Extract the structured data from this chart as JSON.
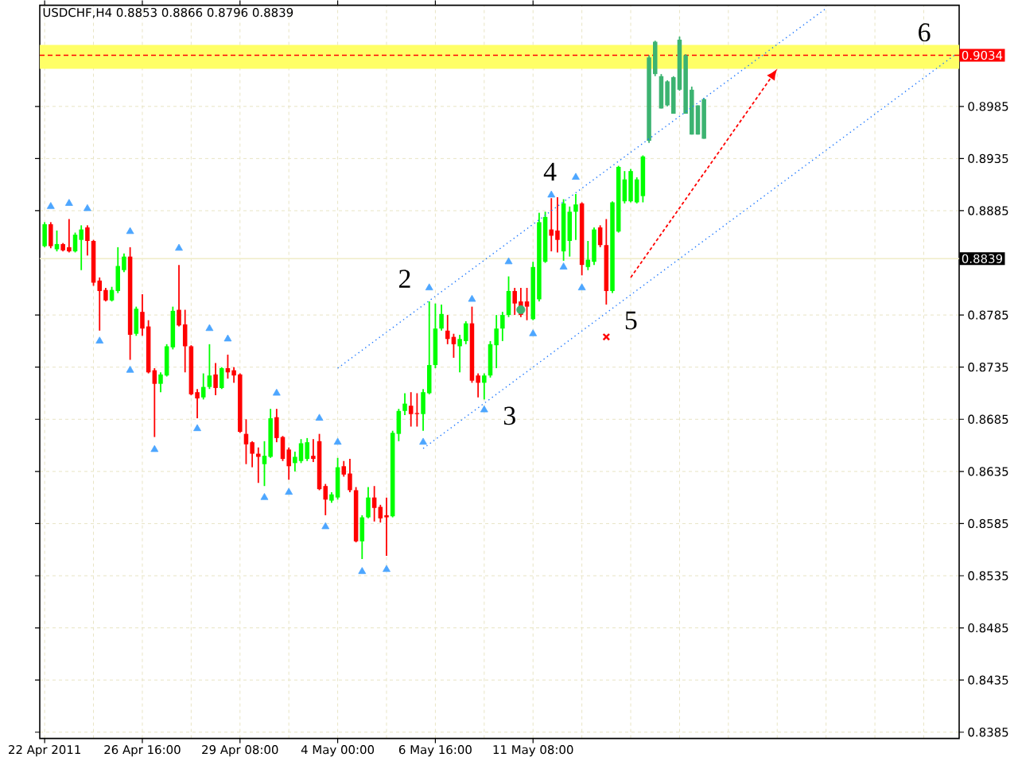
{
  "chart_data": {
    "type": "candlestick",
    "title": "USDCHF,H4  0.8853 0.8866 0.8796 0.8839",
    "categories": [
      "22 Apr 2011",
      null,
      null,
      null,
      null,
      null,
      null,
      null,
      null,
      null,
      null,
      null,
      null,
      null,
      null,
      null,
      "26 Apr 16:00",
      null,
      null,
      null,
      null,
      null,
      null,
      null,
      null,
      null,
      null,
      null,
      null,
      null,
      null,
      null,
      "29 Apr 08:00",
      null,
      null,
      null,
      null,
      null,
      null,
      null,
      null,
      null,
      null,
      null,
      null,
      null,
      null,
      null,
      "4 May 00:00",
      null,
      null,
      null,
      null,
      null,
      null,
      null,
      null,
      null,
      null,
      null,
      null,
      null,
      null,
      null,
      "6 May 16:00",
      null,
      null,
      null,
      null,
      null,
      null,
      null,
      null,
      null,
      null,
      null,
      null,
      null,
      null,
      null,
      "11 May 08:00",
      null,
      null,
      null,
      null,
      null,
      null,
      null,
      null,
      null,
      null,
      null,
      null,
      null,
      null,
      null,
      null,
      null,
      null,
      null,
      null,
      null,
      null,
      null,
      null,
      null,
      null,
      null,
      null,
      null,
      null,
      null,
      null,
      null,
      null,
      null,
      null,
      null,
      null,
      null,
      null,
      null,
      null,
      null,
      null,
      null,
      null,
      null,
      null,
      null,
      null,
      null,
      null,
      null,
      null,
      null,
      null,
      null,
      null,
      null,
      null,
      null,
      null,
      null,
      null,
      null,
      null,
      null,
      null,
      null
    ],
    "ohlc": [
      [
        0.8851,
        0.8874,
        0.885,
        0.8872
      ],
      [
        0.8872,
        0.8874,
        0.8849,
        0.8851
      ],
      [
        0.8848,
        0.8866,
        0.8846,
        0.8853
      ],
      [
        0.8853,
        0.8854,
        0.8846,
        0.8847
      ],
      [
        0.885,
        0.8877,
        0.8845,
        0.8846
      ],
      [
        0.8846,
        0.8864,
        0.8845,
        0.8862
      ],
      [
        0.8857,
        0.8871,
        0.8828,
        0.8867
      ],
      [
        0.8869,
        0.8871,
        0.8842,
        0.8856
      ],
      [
        0.8856,
        0.8857,
        0.8813,
        0.8816
      ],
      [
        0.8818,
        0.8821,
        0.877,
        0.8808
      ],
      [
        0.8809,
        0.8811,
        0.8798,
        0.8799
      ],
      [
        0.8799,
        0.8812,
        0.8798,
        0.8809
      ],
      [
        0.8808,
        0.885,
        0.8806,
        0.8832
      ],
      [
        0.8828,
        0.8844,
        0.8826,
        0.8841
      ],
      [
        0.8841,
        0.885,
        0.8742,
        0.8766
      ],
      [
        0.8767,
        0.8793,
        0.8765,
        0.8791
      ],
      [
        0.8788,
        0.8805,
        0.8765,
        0.8772
      ],
      [
        0.8774,
        0.878,
        0.8729,
        0.873
      ],
      [
        0.8732,
        0.8734,
        0.8668,
        0.8719
      ],
      [
        0.8719,
        0.873,
        0.8711,
        0.8728
      ],
      [
        0.8727,
        0.8757,
        0.8726,
        0.8755
      ],
      [
        0.8754,
        0.8793,
        0.8752,
        0.8789
      ],
      [
        0.879,
        0.8833,
        0.8774,
        0.8775
      ],
      [
        0.8776,
        0.879,
        0.873,
        0.8755
      ],
      [
        0.8755,
        0.8756,
        0.8708,
        0.8709
      ],
      [
        0.8711,
        0.8714,
        0.8686,
        0.8705
      ],
      [
        0.8706,
        0.8729,
        0.8704,
        0.8716
      ],
      [
        0.8716,
        0.8757,
        0.8714,
        0.8727
      ],
      [
        0.8728,
        0.8739,
        0.8708,
        0.8715
      ],
      [
        0.8715,
        0.8735,
        0.8714,
        0.8734
      ],
      [
        0.8734,
        0.8747,
        0.8724,
        0.873
      ],
      [
        0.8732,
        0.8735,
        0.872,
        0.8727
      ],
      [
        0.8728,
        0.8729,
        0.8672,
        0.8673
      ],
      [
        0.8671,
        0.8685,
        0.8642,
        0.8661
      ],
      [
        0.8663,
        0.8664,
        0.8639,
        0.8652
      ],
      [
        0.8652,
        0.8658,
        0.8624,
        0.8649
      ],
      [
        0.8642,
        0.8664,
        0.8621,
        0.865
      ],
      [
        0.8649,
        0.8695,
        0.8648,
        0.8686
      ],
      [
        0.8687,
        0.8695,
        0.8663,
        0.8667
      ],
      [
        0.8668,
        0.8669,
        0.8645,
        0.8647
      ],
      [
        0.8656,
        0.8658,
        0.8627,
        0.864
      ],
      [
        0.8643,
        0.8654,
        0.8635,
        0.8649
      ],
      [
        0.8645,
        0.8666,
        0.8643,
        0.8662
      ],
      [
        0.8647,
        0.8667,
        0.8645,
        0.8663
      ],
      [
        0.865,
        0.8666,
        0.8644,
        0.8647
      ],
      [
        0.8664,
        0.8671,
        0.8617,
        0.8618
      ],
      [
        0.8621,
        0.8623,
        0.8593,
        0.8608
      ],
      [
        0.8607,
        0.8615,
        0.8605,
        0.8613
      ],
      [
        0.861,
        0.8648,
        0.8608,
        0.8639
      ],
      [
        0.864,
        0.8645,
        0.863,
        0.8632
      ],
      [
        0.8633,
        0.8647,
        0.8615,
        0.8617
      ],
      [
        0.8617,
        0.862,
        0.8567,
        0.8568
      ],
      [
        0.8568,
        0.8593,
        0.8551,
        0.8591
      ],
      [
        0.8591,
        0.862,
        0.859,
        0.861
      ],
      [
        0.861,
        0.8621,
        0.8587,
        0.86
      ],
      [
        0.8601,
        0.8603,
        0.8586,
        0.859
      ],
      [
        0.8593,
        0.861,
        0.8554,
        0.8591
      ],
      [
        0.8592,
        0.8674,
        0.8591,
        0.8672
      ],
      [
        0.8671,
        0.8695,
        0.8664,
        0.8693
      ],
      [
        0.8693,
        0.871,
        0.8689,
        0.87
      ],
      [
        0.8698,
        0.8711,
        0.8678,
        0.869
      ],
      [
        0.8691,
        0.871,
        0.8678,
        0.869
      ],
      [
        0.869,
        0.8714,
        0.8674,
        0.8711
      ],
      [
        0.871,
        0.8798,
        0.8709,
        0.8737
      ],
      [
        0.8737,
        0.8796,
        0.8734,
        0.8772
      ],
      [
        0.8772,
        0.8795,
        0.877,
        0.8786
      ],
      [
        0.877,
        0.8785,
        0.8757,
        0.8762
      ],
      [
        0.8764,
        0.8767,
        0.8744,
        0.8757
      ],
      [
        0.8755,
        0.8766,
        0.873,
        0.8762
      ],
      [
        0.876,
        0.8779,
        0.8757,
        0.8777
      ],
      [
        0.8777,
        0.8793,
        0.872,
        0.8722
      ],
      [
        0.8727,
        0.8729,
        0.8706,
        0.872
      ],
      [
        0.872,
        0.8729,
        0.8704,
        0.8727
      ],
      [
        0.8727,
        0.876,
        0.8725,
        0.8757
      ],
      [
        0.8756,
        0.8785,
        0.8734,
        0.8772
      ],
      [
        0.8772,
        0.8788,
        0.876,
        0.8785
      ],
      [
        0.8785,
        0.8822,
        0.8783,
        0.8808
      ],
      [
        0.8808,
        0.8811,
        0.8785,
        0.8796
      ],
      [
        0.8798,
        0.8811,
        0.8783,
        0.8785
      ],
      [
        0.8798,
        0.8811,
        0.878,
        0.8793
      ],
      [
        0.8781,
        0.8836,
        0.878,
        0.8831
      ],
      [
        0.88,
        0.8883,
        0.8798,
        0.8874
      ],
      [
        0.8836,
        0.8884,
        0.8835,
        0.8879
      ],
      [
        0.8867,
        0.8897,
        0.8846,
        0.8861
      ],
      [
        0.8866,
        0.8898,
        0.8845,
        0.8857
      ],
      [
        0.8846,
        0.8896,
        0.8837,
        0.8892
      ],
      [
        0.8856,
        0.8889,
        0.8841,
        0.8884
      ],
      [
        0.8884,
        0.8901,
        0.8857,
        0.8891
      ],
      [
        0.8892,
        0.8893,
        0.8823,
        0.8833
      ],
      [
        0.8831,
        0.8856,
        0.8828,
        0.8838
      ],
      [
        0.8836,
        0.8869,
        0.8833,
        0.8867
      ],
      [
        0.8869,
        0.8871,
        0.885,
        0.8852
      ],
      [
        0.8852,
        0.8877,
        0.8795,
        0.8808
      ],
      [
        0.8808,
        0.8894,
        0.8806,
        0.8893
      ],
      [
        0.8865,
        0.8928,
        0.8864,
        0.8927
      ],
      [
        0.8894,
        0.8923,
        0.8892,
        0.8915
      ],
      [
        0.8894,
        0.8925,
        0.8893,
        0.8923
      ],
      [
        0.8893,
        0.8917,
        0.8892,
        0.8915
      ],
      [
        0.8899,
        0.8938,
        0.8893,
        0.8937
      ],
      [
        0.8952,
        0.9034,
        0.895,
        0.9032
      ],
      [
        0.9016,
        0.9048,
        0.9014,
        0.9047
      ],
      [
        0.8983,
        0.9016,
        0.8983,
        0.9014
      ],
      [
        0.8986,
        0.901,
        0.8985,
        0.9009
      ],
      [
        0.8978,
        0.9014,
        0.8978,
        0.9013
      ],
      [
        0.9001,
        0.9052,
        0.9,
        0.9049
      ],
      [
        0.8978,
        0.9035,
        0.8978,
        0.9034
      ],
      [
        0.8958,
        0.9004,
        0.8958,
        0.9001
      ],
      [
        0.8958,
        0.8986,
        0.8958,
        0.8986
      ],
      [
        0.8954,
        0.8993,
        0.8954,
        0.8992
      ],
      null,
      null,
      null,
      null,
      null,
      null,
      null,
      null,
      null,
      null,
      null,
      null,
      null,
      null,
      null,
      null,
      null,
      null,
      null,
      null,
      null,
      null,
      null,
      null,
      null,
      null,
      null,
      null,
      null,
      null,
      null,
      null,
      null,
      null,
      null,
      null,
      null,
      null,
      null,
      null,
      null
    ],
    "colors": [
      "#00ff00",
      "#ff0000",
      "#00ff00",
      "#ff0000",
      "#ff0000",
      "#00ff00",
      "#00ff00",
      "#ff0000",
      "#ff0000",
      "#ff0000",
      "#ff0000",
      "#00ff00",
      "#00ff00",
      "#00ff00",
      "#ff0000",
      "#00ff00",
      "#ff0000",
      "#ff0000",
      "#ff0000",
      "#00ff00",
      "#00ff00",
      "#00ff00",
      "#ff0000",
      "#ff0000",
      "#ff0000",
      "#ff0000",
      "#00ff00",
      "#00ff00",
      "#ff0000",
      "#00ff00",
      "#ff0000",
      "#ff0000",
      "#ff0000",
      "#ff0000",
      "#ff0000",
      "#ff0000",
      "#00ff00",
      "#00ff00",
      "#ff0000",
      "#ff0000",
      "#ff0000",
      "#00ff00",
      "#00ff00",
      "#00ff00",
      "#ff0000",
      "#ff0000",
      "#ff0000",
      "#00ff00",
      "#00ff00",
      "#ff0000",
      "#ff0000",
      "#ff0000",
      "#00ff00",
      "#00ff00",
      "#ff0000",
      "#ff0000",
      "#ff0000",
      "#00ff00",
      "#00ff00",
      "#00ff00",
      "#ff0000",
      "#ff0000",
      "#00ff00",
      "#00ff00",
      "#00ff00",
      "#00ff00",
      "#ff0000",
      "#ff0000",
      "#00ff00",
      "#00ff00",
      "#ff0000",
      "#ff0000",
      "#00ff00",
      "#00ff00",
      "#00ff00",
      "#00ff00",
      "#00ff00",
      "#ff0000",
      "#ff0000",
      "#ff0000",
      "#00ff00",
      "#00ff00",
      "#00ff00",
      "#ff0000",
      "#ff0000",
      "#00ff00",
      "#00ff00",
      "#00ff00",
      "#ff0000",
      "#00ff00",
      "#00ff00",
      "#ff0000",
      "#ff0000",
      "#00ff00",
      "#00ff00",
      "#00ff00",
      "#00ff00",
      "#00ff00",
      "#00ff00",
      "#3cb371",
      "#3cb371",
      "#3cb371",
      "#3cb371",
      "#3cb371",
      "#3cb371",
      "#3cb371",
      "#3cb371",
      "#3cb371",
      "#3cb371",
      null,
      null,
      null,
      null,
      null,
      null,
      null,
      null,
      null,
      null,
      null,
      null,
      null,
      null,
      null,
      null,
      null,
      null,
      null,
      null,
      null,
      null,
      null,
      null,
      null,
      null,
      null,
      null,
      null,
      null,
      null,
      null,
      null,
      null,
      null,
      null,
      null,
      null,
      null,
      null,
      null
    ],
    "series": [
      {
        "type": "scatter",
        "marker": "triangle",
        "color": "#4da6ff",
        "values": [
          null,
          0.8889,
          null,
          null,
          0.8892,
          null,
          null,
          0.8887,
          null,
          null,
          null,
          null,
          null,
          null,
          0.8865,
          null,
          null,
          null,
          null,
          null,
          null,
          null,
          0.8849,
          null,
          null,
          null,
          null,
          0.8772,
          null,
          null,
          0.8762,
          null,
          null,
          null,
          null,
          null,
          null,
          null,
          0.871,
          null,
          null,
          null,
          null,
          null,
          null,
          0.8686,
          null,
          null,
          0.8663,
          null,
          null,
          null,
          null,
          null,
          null,
          null,
          null,
          null,
          null,
          null,
          null,
          null,
          null,
          0.8811,
          null,
          null,
          null,
          null,
          null,
          null,
          0.88,
          null,
          null,
          null,
          null,
          null,
          0.8836,
          null,
          null,
          null,
          null,
          null,
          null,
          0.89,
          null,
          null,
          null,
          0.8917,
          null,
          null,
          null,
          null,
          null,
          null,
          null,
          null,
          null,
          null,
          null,
          null,
          null,
          null,
          null,
          null,
          null,
          null,
          null,
          null,
          null,
          null,
          null,
          null,
          null,
          null,
          null,
          null,
          null,
          null,
          null,
          null,
          null,
          null,
          null,
          null,
          null,
          null,
          null,
          null,
          null,
          null,
          null,
          null,
          null,
          null,
          null,
          null,
          null,
          null,
          null,
          null,
          null,
          null,
          null,
          null,
          null,
          null,
          null,
          null,
          null,
          null
        ]
      },
      {
        "type": "scatter",
        "marker": "triangle",
        "color": "#4da6ff",
        "values": [
          null,
          null,
          null,
          null,
          null,
          null,
          null,
          null,
          null,
          0.876,
          null,
          null,
          null,
          null,
          0.8732,
          null,
          null,
          null,
          0.8656,
          null,
          null,
          null,
          null,
          null,
          null,
          0.8676,
          null,
          null,
          null,
          null,
          null,
          null,
          null,
          null,
          null,
          null,
          0.861,
          null,
          null,
          null,
          0.8615,
          null,
          null,
          null,
          null,
          null,
          0.8582,
          null,
          null,
          null,
          null,
          null,
          0.8539,
          null,
          null,
          null,
          0.8541,
          null,
          null,
          null,
          null,
          null,
          0.8663,
          null,
          null,
          null,
          null,
          null,
          null,
          null,
          null,
          null,
          0.8694,
          null,
          null,
          null,
          null,
          null,
          null,
          null,
          0.8767,
          null,
          null,
          null,
          null,
          0.8831,
          null,
          null,
          0.8811,
          null,
          null,
          null,
          null,
          null,
          null,
          null,
          null,
          null,
          null,
          null,
          null,
          null,
          null,
          null,
          null,
          null,
          null,
          null,
          null,
          null,
          null,
          null,
          null,
          null,
          null,
          null,
          null,
          null,
          null,
          null,
          null,
          null,
          null,
          null,
          null,
          null,
          null,
          null,
          null,
          null,
          null,
          null,
          null,
          null,
          null,
          null,
          null,
          null,
          null,
          null,
          null,
          null,
          null,
          null,
          null,
          null,
          null,
          null,
          null,
          null
        ]
      },
      {
        "type": "line",
        "line_style": "dotted",
        "color": "#1e78ff",
        "values": [
          null,
          null,
          null,
          null,
          null,
          null,
          null,
          null,
          null,
          null,
          null,
          null,
          null,
          null,
          null,
          null,
          null,
          null,
          null,
          null,
          null,
          null,
          null,
          null,
          null,
          null,
          null,
          null,
          null,
          null,
          null,
          null,
          null,
          null,
          null,
          null,
          null,
          null,
          null,
          null,
          null,
          null,
          null,
          null,
          null,
          null,
          null,
          null,
          0.8734,
          null,
          null,
          null,
          null,
          null,
          null,
          null,
          null,
          null,
          null,
          null,
          null,
          null,
          null,
          null,
          null,
          null,
          null,
          null,
          null,
          null,
          null,
          null,
          null,
          null,
          null,
          null,
          null,
          null,
          null,
          null,
          null,
          null,
          null,
          null,
          null,
          null,
          null,
          null,
          null,
          null,
          null,
          null,
          null,
          null,
          null,
          null,
          null,
          null,
          null,
          null,
          null,
          null,
          null,
          null,
          null,
          null,
          null,
          null,
          null,
          null,
          null,
          null,
          null,
          null,
          null,
          null,
          null,
          null,
          null,
          null,
          null,
          null,
          null,
          null,
          null,
          null,
          null,
          null,
          0.9079,
          null,
          null,
          null,
          null,
          null,
          null,
          null,
          null,
          null,
          null,
          null,
          null,
          null,
          null,
          null,
          null,
          null,
          null,
          null,
          null,
          null
        ]
      },
      {
        "type": "line",
        "line_style": "dotted",
        "color": "#1e78ff",
        "values": [
          null,
          null,
          null,
          null,
          null,
          null,
          null,
          null,
          null,
          null,
          null,
          null,
          null,
          null,
          null,
          null,
          null,
          null,
          null,
          null,
          null,
          null,
          null,
          null,
          null,
          null,
          null,
          null,
          null,
          null,
          null,
          null,
          null,
          null,
          null,
          null,
          null,
          null,
          null,
          null,
          null,
          null,
          null,
          null,
          null,
          null,
          null,
          null,
          null,
          null,
          null,
          null,
          null,
          null,
          null,
          null,
          null,
          null,
          null,
          null,
          null,
          null,
          0.8657,
          null,
          null,
          null,
          null,
          null,
          null,
          null,
          null,
          null,
          null,
          null,
          null,
          null,
          null,
          null,
          null,
          null,
          null,
          null,
          null,
          null,
          null,
          null,
          null,
          null,
          null,
          null,
          null,
          null,
          null,
          null,
          null,
          null,
          null,
          null,
          null,
          null,
          null,
          null,
          null,
          null,
          null,
          null,
          null,
          null,
          null,
          null,
          null,
          null,
          null,
          null,
          null,
          null,
          null,
          null,
          null,
          null,
          null,
          null,
          null,
          null,
          null,
          null,
          null,
          null,
          null,
          null,
          null,
          null,
          null,
          null,
          null,
          null,
          null,
          null,
          null,
          null,
          null,
          null,
          null,
          null,
          null,
          null,
          null,
          null,
          null,
          0.9034
        ]
      },
      {
        "type": "scatter",
        "marker": "cross",
        "color": "#ff0000",
        "values": [
          null,
          null,
          null,
          null,
          null,
          null,
          null,
          null,
          null,
          null,
          null,
          null,
          null,
          null,
          null,
          null,
          null,
          null,
          null,
          null,
          null,
          null,
          null,
          null,
          null,
          null,
          null,
          null,
          null,
          null,
          null,
          null,
          null,
          null,
          null,
          null,
          null,
          null,
          null,
          null,
          null,
          null,
          null,
          null,
          null,
          null,
          null,
          null,
          null,
          null,
          null,
          null,
          null,
          null,
          null,
          null,
          null,
          null,
          null,
          null,
          null,
          null,
          null,
          null,
          null,
          null,
          null,
          null,
          null,
          null,
          null,
          null,
          null,
          null,
          null,
          null,
          null,
          null,
          null,
          null,
          null,
          null,
          null,
          null,
          null,
          null,
          null,
          null,
          null,
          null,
          null,
          null,
          0.8764,
          null,
          null,
          null,
          null,
          null,
          null,
          null,
          null,
          null,
          null,
          null,
          null,
          null,
          null,
          null,
          null,
          null,
          null,
          null,
          null,
          null,
          null,
          null,
          null,
          null,
          null,
          null,
          null,
          null,
          null,
          null,
          null,
          null,
          null,
          null,
          null,
          null,
          null,
          null,
          null,
          null,
          null,
          null,
          null,
          null,
          null,
          null,
          null,
          null,
          null,
          null,
          null,
          null,
          null,
          null,
          null,
          null
        ]
      },
      {
        "type": "scatter",
        "marker": "circle",
        "color": "#3cb371",
        "values": [
          null,
          null,
          null,
          null,
          null,
          null,
          null,
          null,
          null,
          null,
          null,
          null,
          null,
          null,
          null,
          null,
          null,
          null,
          null,
          null,
          null,
          null,
          null,
          null,
          null,
          null,
          null,
          null,
          null,
          null,
          null,
          null,
          null,
          null,
          null,
          null,
          null,
          null,
          null,
          null,
          null,
          null,
          null,
          null,
          null,
          null,
          null,
          null,
          null,
          null,
          null,
          null,
          null,
          null,
          null,
          null,
          null,
          null,
          null,
          null,
          null,
          null,
          null,
          null,
          null,
          null,
          null,
          null,
          null,
          null,
          null,
          null,
          null,
          null,
          null,
          null,
          null,
          null,
          0.879,
          null,
          null,
          null,
          null,
          null,
          null,
          null,
          null,
          null,
          null,
          null,
          null,
          null,
          null,
          null,
          null,
          null,
          null,
          null,
          null,
          null,
          null,
          null,
          null,
          null,
          null,
          null,
          null,
          null,
          null,
          null,
          null,
          null,
          null,
          null,
          null,
          null,
          null,
          null,
          null,
          null,
          null,
          null,
          null,
          null,
          null,
          null,
          null,
          null,
          null,
          null,
          null,
          null,
          null,
          null,
          null,
          null,
          null,
          null,
          null,
          null,
          null,
          null,
          null,
          null,
          null,
          null,
          null,
          null,
          null,
          null
        ]
      }
    ],
    "annotations": [
      "2",
      "3",
      {
        "text": "4",
        "y": 0.8901
      },
      "5",
      "6"
    ],
    "ref_lines": [
      {
        "axis": "y",
        "value": 0.9034,
        "label": "0.9034",
        "color": "#ff0000",
        "line_style": "dashed"
      },
      {
        "axis": "y",
        "value": 0.8839,
        "label": "0.8839",
        "color": "#f0ecc8",
        "line_style": "solid"
      }
    ],
    "bands": [
      {
        "axis": "y",
        "from": 0.9021,
        "to": 0.9044,
        "color": "#ffff66"
      }
    ],
    "ylim": [
      0.8379,
      0.9082
    ],
    "yticks": [
      0.8385,
      0.8435,
      0.8485,
      0.8535,
      0.8585,
      0.8635,
      0.8685,
      0.8735,
      0.8785,
      0.8885,
      0.8935,
      0.8985
    ],
    "grid": true
  }
}
